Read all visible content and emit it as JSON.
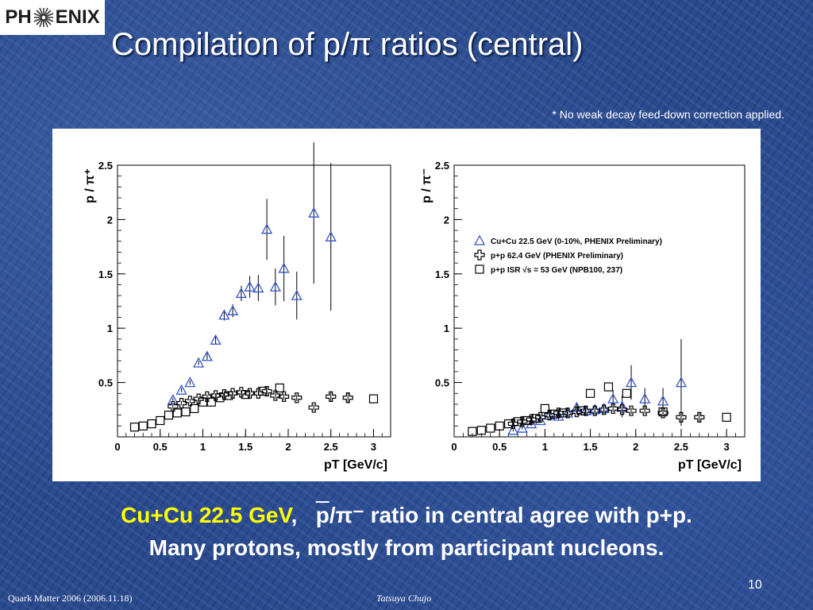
{
  "header": {
    "logo_text_left": "PH",
    "logo_text_right": "ENIX",
    "title": "Compilation of p/π ratios (central)"
  },
  "note": "* No weak decay feed-down correction applied.",
  "caption": {
    "highlight": "Cu+Cu 22.5 GeV",
    "sep": ",",
    "ratio_num": "p",
    "ratio_den": "/π⁻",
    "rest": " ratio in central agree with p+p.",
    "line2": "Many protons, mostly from participant nucleons."
  },
  "footer": {
    "left": "Quark Matter 2006 (2006.11.18)",
    "author": "Tatsuya Chujo",
    "page": "10"
  },
  "colors": {
    "cucu": "#3355cc",
    "pp": "#000000",
    "isr": "#000000"
  },
  "chart_data": [
    {
      "type": "scatter",
      "ylabel": "p / π⁺",
      "xlabel": "pT [GeV/c]",
      "xlim": [
        0,
        3.2
      ],
      "ylim": [
        0,
        2.5
      ],
      "xticks": [
        "0",
        "0.5",
        "1",
        "1.5",
        "2",
        "2.5",
        "3"
      ],
      "yticks": [
        "0.5",
        "1",
        "1.5",
        "2",
        "2.5"
      ],
      "series": [
        {
          "marker": "triangle",
          "points": [
            {
              "x": 0.65,
              "y": 0.34,
              "e": 0.02
            },
            {
              "x": 0.75,
              "y": 0.43,
              "e": 0.02
            },
            {
              "x": 0.85,
              "y": 0.5,
              "e": 0.02
            },
            {
              "x": 0.95,
              "y": 0.68,
              "e": 0.02
            },
            {
              "x": 1.05,
              "y": 0.74,
              "e": 0.03
            },
            {
              "x": 1.15,
              "y": 0.89,
              "e": 0.04
            },
            {
              "x": 1.25,
              "y": 1.12,
              "e": 0.05
            },
            {
              "x": 1.35,
              "y": 1.16,
              "e": 0.06
            },
            {
              "x": 1.45,
              "y": 1.32,
              "e": 0.07
            },
            {
              "x": 1.55,
              "y": 1.38,
              "e": 0.1
            },
            {
              "x": 1.65,
              "y": 1.37,
              "e": 0.12
            },
            {
              "x": 1.75,
              "y": 1.91,
              "e": 0.28
            },
            {
              "x": 1.85,
              "y": 1.38,
              "e": 0.17
            },
            {
              "x": 1.95,
              "y": 1.55,
              "e": 0.3
            },
            {
              "x": 2.1,
              "y": 1.3,
              "e": 0.22
            },
            {
              "x": 2.3,
              "y": 2.06,
              "e": 0.65
            },
            {
              "x": 2.5,
              "y": 1.84,
              "e": 0.68
            }
          ]
        },
        {
          "marker": "cross",
          "points": [
            {
              "x": 0.65,
              "y": 0.28,
              "e": 0.02
            },
            {
              "x": 0.75,
              "y": 0.31,
              "e": 0.02
            },
            {
              "x": 0.85,
              "y": 0.33,
              "e": 0.02
            },
            {
              "x": 0.95,
              "y": 0.35,
              "e": 0.02
            },
            {
              "x": 1.05,
              "y": 0.37,
              "e": 0.02
            },
            {
              "x": 1.15,
              "y": 0.38,
              "e": 0.02
            },
            {
              "x": 1.25,
              "y": 0.39,
              "e": 0.02
            },
            {
              "x": 1.35,
              "y": 0.4,
              "e": 0.02
            },
            {
              "x": 1.45,
              "y": 0.41,
              "e": 0.02
            },
            {
              "x": 1.55,
              "y": 0.4,
              "e": 0.02
            },
            {
              "x": 1.65,
              "y": 0.4,
              "e": 0.02
            },
            {
              "x": 1.75,
              "y": 0.42,
              "e": 0.03
            },
            {
              "x": 1.85,
              "y": 0.38,
              "e": 0.03
            },
            {
              "x": 1.95,
              "y": 0.37,
              "e": 0.03
            },
            {
              "x": 2.1,
              "y": 0.36,
              "e": 0.03
            },
            {
              "x": 2.3,
              "y": 0.27,
              "e": 0.03
            },
            {
              "x": 2.5,
              "y": 0.37,
              "e": 0.04
            },
            {
              "x": 2.7,
              "y": 0.36,
              "e": 0.05
            }
          ]
        },
        {
          "marker": "square",
          "points": [
            {
              "x": 0.2,
              "y": 0.09
            },
            {
              "x": 0.3,
              "y": 0.1
            },
            {
              "x": 0.4,
              "y": 0.12
            },
            {
              "x": 0.5,
              "y": 0.15
            },
            {
              "x": 0.6,
              "y": 0.2
            },
            {
              "x": 0.7,
              "y": 0.22
            },
            {
              "x": 0.8,
              "y": 0.23
            },
            {
              "x": 0.9,
              "y": 0.26
            },
            {
              "x": 1.0,
              "y": 0.32
            },
            {
              "x": 1.1,
              "y": 0.32
            },
            {
              "x": 1.2,
              "y": 0.36
            },
            {
              "x": 1.3,
              "y": 0.38
            },
            {
              "x": 1.5,
              "y": 0.39
            },
            {
              "x": 1.7,
              "y": 0.42
            },
            {
              "x": 1.9,
              "y": 0.45
            },
            {
              "x": 3.0,
              "y": 0.35
            }
          ]
        }
      ]
    },
    {
      "type": "scatter",
      "ylabel": "p / π⁻",
      "xlabel": "pT [GeV/c]",
      "xlim": [
        0,
        3.2
      ],
      "ylim": [
        0,
        2.5
      ],
      "xticks": [
        "0",
        "0.5",
        "1",
        "1.5",
        "2",
        "2.5",
        "3"
      ],
      "yticks": [
        "0.5",
        "1",
        "1.5",
        "2",
        "2.5"
      ],
      "legend_position": "top-right",
      "series": [
        {
          "name": "Cu+Cu 22.5  GeV (0-10%, PHENIX Preliminary)",
          "marker": "triangle",
          "points": [
            {
              "x": 0.65,
              "y": 0.06,
              "e": 0.01
            },
            {
              "x": 0.75,
              "y": 0.08,
              "e": 0.01
            },
            {
              "x": 0.85,
              "y": 0.12,
              "e": 0.02
            },
            {
              "x": 0.95,
              "y": 0.15,
              "e": 0.02
            },
            {
              "x": 1.05,
              "y": 0.2,
              "e": 0.02
            },
            {
              "x": 1.15,
              "y": 0.19,
              "e": 0.03
            },
            {
              "x": 1.25,
              "y": 0.22,
              "e": 0.03
            },
            {
              "x": 1.35,
              "y": 0.27,
              "e": 0.04
            },
            {
              "x": 1.45,
              "y": 0.24,
              "e": 0.04
            },
            {
              "x": 1.55,
              "y": 0.25,
              "e": 0.05
            },
            {
              "x": 1.65,
              "y": 0.26,
              "e": 0.05
            },
            {
              "x": 1.75,
              "y": 0.35,
              "e": 0.08
            },
            {
              "x": 1.85,
              "y": 0.28,
              "e": 0.1
            },
            {
              "x": 1.95,
              "y": 0.5,
              "e": 0.16
            },
            {
              "x": 2.1,
              "y": 0.35,
              "e": 0.1
            },
            {
              "x": 2.3,
              "y": 0.33,
              "e": 0.12
            },
            {
              "x": 2.5,
              "y": 0.5,
              "e": 0.4
            }
          ]
        },
        {
          "name": "p+p 62.4 GeV (PHENIX Preliminary)",
          "marker": "cross",
          "points": [
            {
              "x": 0.65,
              "y": 0.12,
              "e": 0.02
            },
            {
              "x": 0.75,
              "y": 0.14,
              "e": 0.02
            },
            {
              "x": 0.85,
              "y": 0.16,
              "e": 0.02
            },
            {
              "x": 0.95,
              "y": 0.18,
              "e": 0.02
            },
            {
              "x": 1.05,
              "y": 0.2,
              "e": 0.02
            },
            {
              "x": 1.15,
              "y": 0.22,
              "e": 0.02
            },
            {
              "x": 1.25,
              "y": 0.22,
              "e": 0.02
            },
            {
              "x": 1.35,
              "y": 0.23,
              "e": 0.02
            },
            {
              "x": 1.45,
              "y": 0.24,
              "e": 0.02
            },
            {
              "x": 1.55,
              "y": 0.24,
              "e": 0.02
            },
            {
              "x": 1.65,
              "y": 0.25,
              "e": 0.02
            },
            {
              "x": 1.75,
              "y": 0.26,
              "e": 0.03
            },
            {
              "x": 1.85,
              "y": 0.25,
              "e": 0.03
            },
            {
              "x": 1.95,
              "y": 0.24,
              "e": 0.03
            },
            {
              "x": 2.1,
              "y": 0.24,
              "e": 0.03
            },
            {
              "x": 2.3,
              "y": 0.22,
              "e": 0.03
            },
            {
              "x": 2.5,
              "y": 0.18,
              "e": 0.04
            },
            {
              "x": 2.7,
              "y": 0.18,
              "e": 0.04
            }
          ]
        },
        {
          "name": "p+p ISR √s = 53 GeV (NPB100, 237)",
          "marker": "square",
          "points": [
            {
              "x": 0.2,
              "y": 0.05
            },
            {
              "x": 0.3,
              "y": 0.06
            },
            {
              "x": 0.4,
              "y": 0.08
            },
            {
              "x": 0.5,
              "y": 0.1
            },
            {
              "x": 0.6,
              "y": 0.12
            },
            {
              "x": 0.7,
              "y": 0.14
            },
            {
              "x": 0.8,
              "y": 0.15
            },
            {
              "x": 0.9,
              "y": 0.17
            },
            {
              "x": 1.0,
              "y": 0.26
            },
            {
              "x": 1.1,
              "y": 0.21
            },
            {
              "x": 1.2,
              "y": 0.22
            },
            {
              "x": 1.4,
              "y": 0.24
            },
            {
              "x": 1.5,
              "y": 0.4
            },
            {
              "x": 1.7,
              "y": 0.46
            },
            {
              "x": 1.9,
              "y": 0.4
            },
            {
              "x": 2.3,
              "y": 0.23
            },
            {
              "x": 3.0,
              "y": 0.18
            }
          ]
        }
      ]
    }
  ]
}
